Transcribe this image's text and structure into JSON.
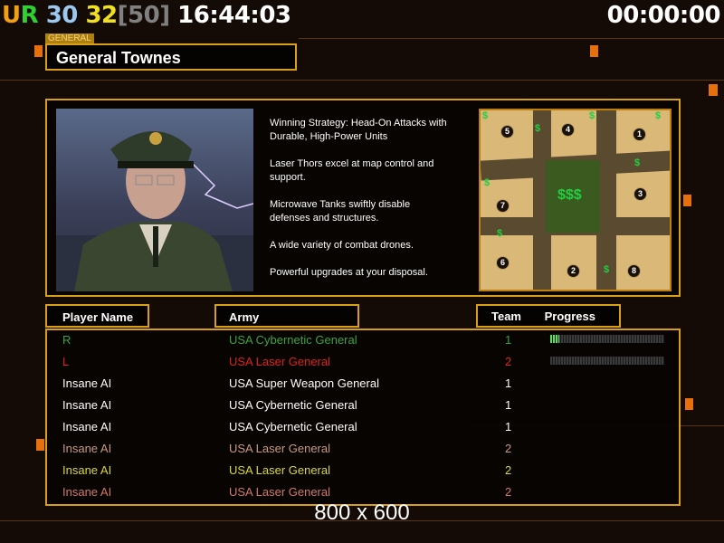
{
  "hud": {
    "ur": "UR",
    "n1": "30",
    "n2": "32",
    "bracket": "[50]",
    "clock": "16:44:03",
    "timer": "00:00:00"
  },
  "general": {
    "tag": "GENERAL",
    "name": "General Townes"
  },
  "strategy": [
    "Winning Strategy: Head-On Attacks with\n Durable, High-Power Units",
    "Laser Thors excel at map control and\n support.",
    "Microwave Tanks swiftly disable\n defenses and structures.",
    "A wide variety of combat drones.",
    "Powerful upgrades at your disposal."
  ],
  "map": {
    "spots": [
      "5",
      "4",
      "1",
      "7",
      "3",
      "6",
      "2",
      "8"
    ],
    "cash_icon": "dollar-icon"
  },
  "columns": {
    "player": "Player Name",
    "army": "Army",
    "team": "Team",
    "progress": "Progress"
  },
  "players": [
    {
      "name": "R",
      "army": "USA Cybernetic General",
      "team": "1",
      "color": "#3ea43e",
      "progress": 0.08
    },
    {
      "name": "L",
      "army": "USA Laser General",
      "team": "2",
      "color": "#e0221c",
      "progress": 0
    },
    {
      "name": "Insane AI",
      "army": "USA Super Weapon General",
      "team": "1",
      "color": "#ffffff"
    },
    {
      "name": "Insane AI",
      "army": "USA Cybernetic General",
      "team": "1",
      "color": "#ffffff"
    },
    {
      "name": "Insane AI",
      "army": "USA Cybernetic General",
      "team": "1",
      "color": "#ffffff"
    },
    {
      "name": "Insane AI",
      "army": "USA Laser General",
      "team": "2",
      "color": "#c89a80"
    },
    {
      "name": "Insane AI",
      "army": "USA Laser General",
      "team": "2",
      "color": "#d8d840"
    },
    {
      "name": "Insane AI",
      "army": "USA Laser General",
      "team": "2",
      "color": "#d07a6a"
    }
  ],
  "resolution": "800 x 600"
}
